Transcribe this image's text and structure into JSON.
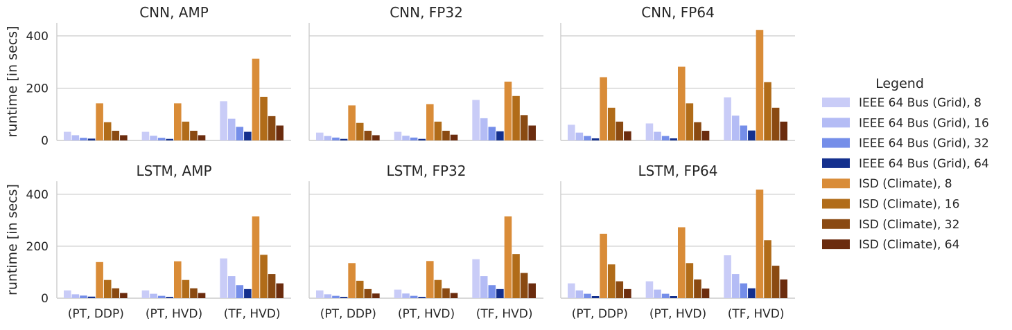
{
  "chart_data": {
    "type": "bar",
    "layout": "faceted 2x3",
    "categories": [
      "(PT, DDP)",
      "(PT, HVD)",
      "(TF, HVD)"
    ],
    "ylabel": "runtime [in secs]",
    "ylim": [
      0,
      450
    ],
    "yticks": [
      "0",
      "200",
      "400"
    ],
    "grid": "horizontal",
    "legend": {
      "title": "Legend",
      "placement": "right",
      "entries": [
        {
          "label": "IEEE 64 Bus (Grid), 8",
          "color": "#c9ccf7"
        },
        {
          "label": "IEEE 64 Bus (Grid), 16",
          "color": "#b4bcf5"
        },
        {
          "label": "IEEE 64 Bus (Grid), 32",
          "color": "#758ee9"
        },
        {
          "label": "IEEE 64 Bus (Grid), 64",
          "color": "#14308e"
        },
        {
          "label": "ISD (Climate), 8",
          "color": "#d98c38"
        },
        {
          "label": "ISD (Climate), 16",
          "color": "#b16c19"
        },
        {
          "label": "ISD (Climate), 32",
          "color": "#8a4a12"
        },
        {
          "label": "ISD (Climate), 64",
          "color": "#6b2c0e"
        }
      ]
    },
    "panels": [
      {
        "title": "CNN, AMP",
        "series": [
          {
            "name": "IEEE 64 Bus (Grid), 8",
            "values": [
              33,
              33,
              150
            ]
          },
          {
            "name": "IEEE 64 Bus (Grid), 16",
            "values": [
              20,
              18,
              83
            ]
          },
          {
            "name": "IEEE 64 Bus (Grid), 32",
            "values": [
              10,
              10,
              52
            ]
          },
          {
            "name": "IEEE 64 Bus (Grid), 64",
            "values": [
              7,
              6,
              33
            ]
          },
          {
            "name": "ISD (Climate), 8",
            "values": [
              142,
              142,
              313
            ]
          },
          {
            "name": "ISD (Climate), 16",
            "values": [
              70,
              72,
              167
            ]
          },
          {
            "name": "ISD (Climate), 32",
            "values": [
              37,
              37,
              93
            ]
          },
          {
            "name": "ISD (Climate), 64",
            "values": [
              20,
              20,
              57
            ]
          }
        ]
      },
      {
        "title": "CNN, FP32",
        "series": [
          {
            "name": "IEEE 64 Bus (Grid), 8",
            "values": [
              30,
              33,
              155
            ]
          },
          {
            "name": "IEEE 64 Bus (Grid), 16",
            "values": [
              17,
              18,
              85
            ]
          },
          {
            "name": "IEEE 64 Bus (Grid), 32",
            "values": [
              11,
              11,
              52
            ]
          },
          {
            "name": "IEEE 64 Bus (Grid), 64",
            "values": [
              6,
              6,
              35
            ]
          },
          {
            "name": "ISD (Climate), 8",
            "values": [
              134,
              139,
              225
            ]
          },
          {
            "name": "ISD (Climate), 16",
            "values": [
              67,
              72,
              170
            ]
          },
          {
            "name": "ISD (Climate), 32",
            "values": [
              37,
              37,
              97
            ]
          },
          {
            "name": "ISD (Climate), 64",
            "values": [
              20,
              22,
              57
            ]
          }
        ]
      },
      {
        "title": "CNN, FP64",
        "series": [
          {
            "name": "IEEE 64 Bus (Grid), 8",
            "values": [
              60,
              65,
              165
            ]
          },
          {
            "name": "IEEE 64 Bus (Grid), 16",
            "values": [
              30,
              33,
              95
            ]
          },
          {
            "name": "IEEE 64 Bus (Grid), 32",
            "values": [
              17,
              17,
              57
            ]
          },
          {
            "name": "IEEE 64 Bus (Grid), 64",
            "values": [
              8,
              8,
              38
            ]
          },
          {
            "name": "ISD (Climate), 8",
            "values": [
              242,
              282,
              423
            ]
          },
          {
            "name": "ISD (Climate), 16",
            "values": [
              125,
              142,
              223
            ]
          },
          {
            "name": "ISD (Climate), 32",
            "values": [
              72,
              70,
              125
            ]
          },
          {
            "name": "ISD (Climate), 64",
            "values": [
              35,
              37,
              72
            ]
          }
        ]
      },
      {
        "title": "LSTM, AMP",
        "series": [
          {
            "name": "IEEE 64 Bus (Grid), 8",
            "values": [
              30,
              30,
              153
            ]
          },
          {
            "name": "IEEE 64 Bus (Grid), 16",
            "values": [
              15,
              17,
              85
            ]
          },
          {
            "name": "IEEE 64 Bus (Grid), 32",
            "values": [
              10,
              9,
              50
            ]
          },
          {
            "name": "IEEE 64 Bus (Grid), 64",
            "values": [
              6,
              5,
              35
            ]
          },
          {
            "name": "ISD (Climate), 8",
            "values": [
              139,
              142,
              315
            ]
          },
          {
            "name": "ISD (Climate), 16",
            "values": [
              70,
              70,
              167
            ]
          },
          {
            "name": "ISD (Climate), 32",
            "values": [
              38,
              38,
              93
            ]
          },
          {
            "name": "ISD (Climate), 64",
            "values": [
              20,
              20,
              57
            ]
          }
        ]
      },
      {
        "title": "LSTM, FP32",
        "series": [
          {
            "name": "IEEE 64 Bus (Grid), 8",
            "values": [
              30,
              33,
              150
            ]
          },
          {
            "name": "IEEE 64 Bus (Grid), 16",
            "values": [
              15,
              18,
              85
            ]
          },
          {
            "name": "IEEE 64 Bus (Grid), 32",
            "values": [
              9,
              9,
              50
            ]
          },
          {
            "name": "IEEE 64 Bus (Grid), 64",
            "values": [
              5,
              5,
              35
            ]
          },
          {
            "name": "ISD (Climate), 8",
            "values": [
              135,
              143,
              315
            ]
          },
          {
            "name": "ISD (Climate), 16",
            "values": [
              67,
              70,
              170
            ]
          },
          {
            "name": "ISD (Climate), 32",
            "values": [
              35,
              38,
              97
            ]
          },
          {
            "name": "ISD (Climate), 64",
            "values": [
              18,
              20,
              57
            ]
          }
        ]
      },
      {
        "title": "LSTM, FP64",
        "series": [
          {
            "name": "IEEE 64 Bus (Grid), 8",
            "values": [
              57,
              65,
              165
            ]
          },
          {
            "name": "IEEE 64 Bus (Grid), 16",
            "values": [
              30,
              33,
              93
            ]
          },
          {
            "name": "IEEE 64 Bus (Grid), 32",
            "values": [
              17,
              17,
              57
            ]
          },
          {
            "name": "IEEE 64 Bus (Grid), 64",
            "values": [
              8,
              8,
              38
            ]
          },
          {
            "name": "ISD (Climate), 8",
            "values": [
              248,
              273,
              418
            ]
          },
          {
            "name": "ISD (Climate), 16",
            "values": [
              130,
              135,
              223
            ]
          },
          {
            "name": "ISD (Climate), 32",
            "values": [
              65,
              72,
              125
            ]
          },
          {
            "name": "ISD (Climate), 64",
            "values": [
              35,
              37,
              72
            ]
          }
        ]
      }
    ]
  }
}
